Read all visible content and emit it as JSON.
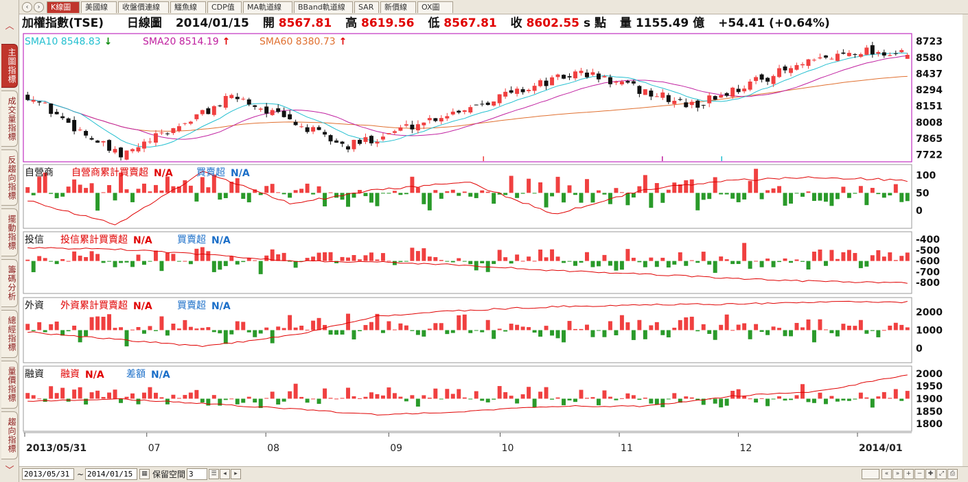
{
  "left_tabs": [
    {
      "label": "主圖指標",
      "active": true
    },
    {
      "label": "成交量指標",
      "active": false
    },
    {
      "label": "反趨向指標",
      "active": false
    },
    {
      "label": "擺動指標",
      "active": false
    },
    {
      "label": "籌碼分析",
      "active": false
    },
    {
      "label": "總經指標",
      "active": false
    },
    {
      "label": "量價指標",
      "active": false
    },
    {
      "label": "趨向指標",
      "active": false
    }
  ],
  "top_tabs": [
    {
      "label": "K線圖",
      "active": true
    },
    {
      "label": "美國線",
      "active": false
    },
    {
      "label": "收盤價連線",
      "active": false
    },
    {
      "label": "鱷魚線",
      "active": false
    },
    {
      "label": "CDP值",
      "active": false
    },
    {
      "label": "MA軌道線",
      "active": false
    },
    {
      "label": "BBand軌道線",
      "active": false
    },
    {
      "label": "SAR",
      "active": false
    },
    {
      "label": "新價線",
      "active": false
    },
    {
      "label": "OX圖",
      "active": false
    }
  ],
  "header": {
    "name": "加權指數(TSE)",
    "period": "日線圖",
    "date": "2014/01/15",
    "open_label": "開",
    "open": "8567.81",
    "high_label": "高",
    "high": "8619.56",
    "low_label": "低",
    "low": "8567.81",
    "close_label": "收",
    "close": "8602.55",
    "unit": "s 點",
    "volume_label": "量",
    "volume": "1155.49 億",
    "change": "+54.41 (+0.64%)"
  },
  "colors": {
    "up": "#f04040",
    "down": "#2a9a2a",
    "sma10": "#22bfd0",
    "sma20": "#c020a0",
    "sma60": "#e07030",
    "cum": "#e00000",
    "frame_main": "#c030c0"
  },
  "chart_data": [
    {
      "type": "candlestick",
      "title": "加權指數(TSE)",
      "series": [
        {
          "name": "SMA10",
          "label": "SMA10 8548.83",
          "trend": "down"
        },
        {
          "name": "SMA20",
          "label": "SMA20 8514.19",
          "trend": "up"
        },
        {
          "name": "SMA60",
          "label": "SMA60 8380.73",
          "trend": "up"
        }
      ],
      "y_ticks": [
        8723,
        8580,
        8437,
        8294,
        8151,
        8008,
        7865,
        7722
      ],
      "ylim": [
        7660,
        8790
      ],
      "x_ticks": [
        "2013/05/31",
        "07",
        "08",
        "09",
        "10",
        "11",
        "12",
        "2014/01"
      ],
      "x_range": [
        "2013/05/31",
        "2014/01/15"
      ],
      "candles_count": 152,
      "last_candle": {
        "open": 8567.81,
        "high": 8619.56,
        "low": 8567.81,
        "close": 8602.55
      },
      "close_path_keypoints": [
        {
          "date": "2013/05/31",
          "close": 8250
        },
        {
          "date": "2013/06/24",
          "close": 7700
        },
        {
          "date": "2013/07/24",
          "close": 8240
        },
        {
          "date": "2013/08/22",
          "close": 7790
        },
        {
          "date": "2013/09/30",
          "close": 8230
        },
        {
          "date": "2013/10/22",
          "close": 8450
        },
        {
          "date": "2013/11/20",
          "close": 8150
        },
        {
          "date": "2013/12/11",
          "close": 8430
        },
        {
          "date": "2014/01/02",
          "close": 8650
        },
        {
          "date": "2014/01/15",
          "close": 8602.55
        }
      ]
    },
    {
      "type": "bar",
      "title": "自營商",
      "series": [
        {
          "name": "自營商累計買賣超",
          "value": "N/A"
        },
        {
          "name": "買賣超",
          "value": "N/A"
        }
      ],
      "y_ticks": [
        100,
        50,
        0
      ],
      "ylim": [
        -50,
        130
      ]
    },
    {
      "type": "bar",
      "title": "投信",
      "series": [
        {
          "name": "投信累計買賣超",
          "value": "N/A"
        },
        {
          "name": "買賣超",
          "value": "N/A"
        }
      ],
      "y_ticks": [
        -400,
        -500,
        -600,
        -700,
        -800
      ],
      "ylim": [
        -900,
        -330
      ]
    },
    {
      "type": "bar",
      "title": "外資",
      "series": [
        {
          "name": "外資累計買賣超",
          "value": "N/A"
        },
        {
          "name": "買賣超",
          "value": "N/A"
        }
      ],
      "y_ticks": [
        2000,
        1000,
        0
      ],
      "ylim": [
        -800,
        2800
      ]
    },
    {
      "type": "bar",
      "title": "融資",
      "series": [
        {
          "name": "融資",
          "value": "N/A"
        },
        {
          "name": "差額",
          "value": "N/A"
        }
      ],
      "y_ticks": [
        2000,
        1950,
        1900,
        1850,
        1800
      ],
      "ylim": [
        1770,
        2030
      ]
    }
  ],
  "bottom": {
    "start_date": "2013/05/31",
    "separator": "~",
    "end_date": "2014/01/15",
    "reserve_label": "保留空間",
    "reserve_value": "3"
  }
}
